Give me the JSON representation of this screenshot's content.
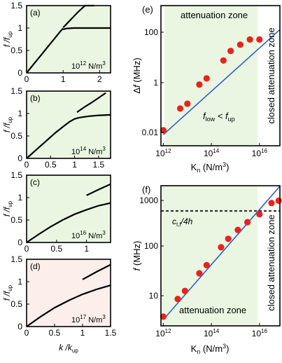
{
  "colors": {
    "green_bg": "#eaf6e1",
    "pink_bg": "#fbeeeb",
    "closed_bg": "#ffffff",
    "curve": "#000000",
    "fit_line": "#2f5fd0",
    "points": "#e8231b",
    "dashed": "#333333"
  },
  "chart_data": [
    {
      "id": "a",
      "type": "line",
      "panel_label": "(a)",
      "annotation": "10¹² N/m³",
      "ylabel": "f / f_up",
      "ylim": [
        0,
        1.5
      ],
      "xlim": [
        0,
        2.3
      ],
      "yticks": [
        "0",
        "0.5",
        "1",
        "1.5"
      ],
      "xticks": [
        "0",
        "1",
        "2"
      ],
      "ytick_values": [
        0,
        0.5,
        1,
        1.5
      ],
      "xtick_values": [
        0,
        1,
        2
      ],
      "background": "green",
      "series": [
        {
          "x": [
            0,
            0.2,
            0.4,
            0.6,
            0.8,
            0.95,
            1.0
          ],
          "y": [
            0,
            0.2,
            0.4,
            0.6,
            0.8,
            0.95,
            0.99
          ]
        },
        {
          "x": [
            1.0,
            1.2,
            1.4,
            1.6,
            1.85
          ],
          "y": [
            1.01,
            1.18,
            1.35,
            1.5,
            1.7
          ]
        },
        {
          "x": [
            1.0,
            1.1,
            1.3,
            1.6,
            2.0,
            2.3
          ],
          "y": [
            0.97,
            0.99,
            1.0,
            1.0,
            1.0,
            1.0
          ]
        }
      ]
    },
    {
      "id": "b",
      "type": "line",
      "panel_label": "(b)",
      "annotation": "10¹⁴ N/m³",
      "ylabel": "f / f_up",
      "ylim": [
        0,
        1.5
      ],
      "xlim": [
        0,
        1.75
      ],
      "yticks": [
        "0",
        "0.5",
        "1",
        "1.5"
      ],
      "xticks": [
        "0",
        "0.5",
        "1",
        "1.5"
      ],
      "ytick_values": [
        0,
        0.5,
        1,
        1.5
      ],
      "xtick_values": [
        0,
        0.5,
        1,
        1.5
      ],
      "background": "green",
      "series": [
        {
          "x": [
            0,
            0.2,
            0.4,
            0.6,
            0.8,
            0.9,
            1.0,
            1.1,
            1.3,
            1.5,
            1.75
          ],
          "y": [
            0,
            0.19,
            0.38,
            0.57,
            0.74,
            0.82,
            0.88,
            0.91,
            0.94,
            0.96,
            0.97
          ]
        },
        {
          "x": [
            1.05,
            1.2,
            1.35,
            1.5,
            1.65
          ],
          "y": [
            1.03,
            1.14,
            1.24,
            1.35,
            1.46
          ]
        }
      ]
    },
    {
      "id": "c",
      "type": "line",
      "panel_label": "(c)",
      "annotation": "10¹⁶ N/m³",
      "ylabel": "f / f_up",
      "ylim": [
        0,
        1.5
      ],
      "xlim": [
        0,
        1.4
      ],
      "yticks": [
        "0",
        "0.5",
        "1",
        "1.5"
      ],
      "xticks": [
        "0",
        "0.5",
        "1"
      ],
      "ytick_values": [
        0,
        0.5,
        1,
        1.5
      ],
      "xtick_values": [
        0,
        0.5,
        1
      ],
      "background": "green",
      "series": [
        {
          "x": [
            0,
            0.2,
            0.4,
            0.6,
            0.8,
            1.0,
            1.2,
            1.4
          ],
          "y": [
            0,
            0.18,
            0.35,
            0.5,
            0.63,
            0.73,
            0.82,
            0.88
          ]
        },
        {
          "x": [
            1.0,
            1.2,
            1.4
          ],
          "y": [
            1.05,
            1.18,
            1.3
          ]
        }
      ]
    },
    {
      "id": "d",
      "type": "line",
      "panel_label": "(d)",
      "annotation": "10¹⁷ N/m³",
      "ylabel": "f / f_up",
      "xlabel": "k / k_up",
      "ylim": [
        0,
        1.5
      ],
      "xlim": [
        0,
        1.5
      ],
      "yticks": [
        "0",
        "0.5",
        "1",
        "1.5"
      ],
      "xticks": [
        "0",
        "0.5",
        "1",
        "1.5"
      ],
      "ytick_values": [
        0,
        0.5,
        1,
        1.5
      ],
      "xtick_values": [
        0,
        0.5,
        1,
        1.5
      ],
      "background": "pink",
      "series": [
        {
          "x": [
            0,
            0.25,
            0.5,
            0.75,
            1.0,
            1.25,
            1.5
          ],
          "y": [
            0,
            0.22,
            0.42,
            0.58,
            0.72,
            0.83,
            0.92
          ]
        },
        {
          "x": [
            1.0,
            1.25,
            1.5
          ],
          "y": [
            1.05,
            1.22,
            1.38
          ]
        }
      ]
    },
    {
      "id": "e",
      "type": "scatter",
      "panel_label": "(e)",
      "scale": "log-log",
      "ylabel": "Δf (MHz)",
      "xlabel": "Kn (N/m³)",
      "xlim_exp": [
        11.9,
        16.85
      ],
      "ylim_exp": [
        -2.45,
        2.65
      ],
      "yticks": [
        "0.01",
        "1",
        "100"
      ],
      "ytick_exp": [
        -2,
        0,
        2
      ],
      "xticks": [
        "10¹²",
        "10¹⁴",
        "10¹⁶"
      ],
      "xtick_exp": [
        12,
        14,
        16
      ],
      "zone_boundary_exp": 16.1,
      "attenuation_label": "attenuation zone",
      "closed_label": "closed attenuation zone",
      "condition_label": "f_low < f_up",
      "points": {
        "x_exp": [
          12,
          12.7,
          13,
          13.5,
          13.8,
          14.5,
          14.8,
          15.2,
          15.6,
          16
        ],
        "y": [
          0.013,
          0.08,
          0.12,
          0.6,
          1.0,
          4.5,
          10,
          17,
          26,
          26
        ]
      },
      "fit_line": {
        "x_exp": [
          12,
          16.85
        ],
        "y": [
          0.009,
          60
        ]
      }
    },
    {
      "id": "f",
      "type": "scatter",
      "panel_label": "(f)",
      "scale": "log-log",
      "ylabel": "f (MHz)",
      "xlabel": "Kn (N/m³)",
      "xlim_exp": [
        11.9,
        16.85
      ],
      "ylim_exp": [
        0.42,
        3.2
      ],
      "yticks": [
        "10",
        "100",
        "1000"
      ],
      "ytick_exp": [
        1,
        2,
        3
      ],
      "xticks": [
        "10¹²",
        "10¹⁴",
        "10¹⁶"
      ],
      "xtick_exp": [
        12,
        14,
        16
      ],
      "zone_boundary_exp": 16.1,
      "attenuation_label": "attenuation zone",
      "closed_label": "closed attenuation zone",
      "cutoff_label": "c_t,f /4h",
      "cutoff_value": 500,
      "points": {
        "x_exp": [
          12,
          12.6,
          12.9,
          13.5,
          13.8,
          14.4,
          14.7,
          15.1,
          15.5,
          16,
          16.5,
          16.8
        ],
        "y": [
          4,
          9,
          13,
          29,
          42,
          95,
          140,
          210,
          300,
          430,
          720,
          800
        ]
      },
      "fit_line": {
        "x_exp": [
          12,
          16.85
        ],
        "y": [
          3.5,
          1550
        ]
      }
    }
  ]
}
